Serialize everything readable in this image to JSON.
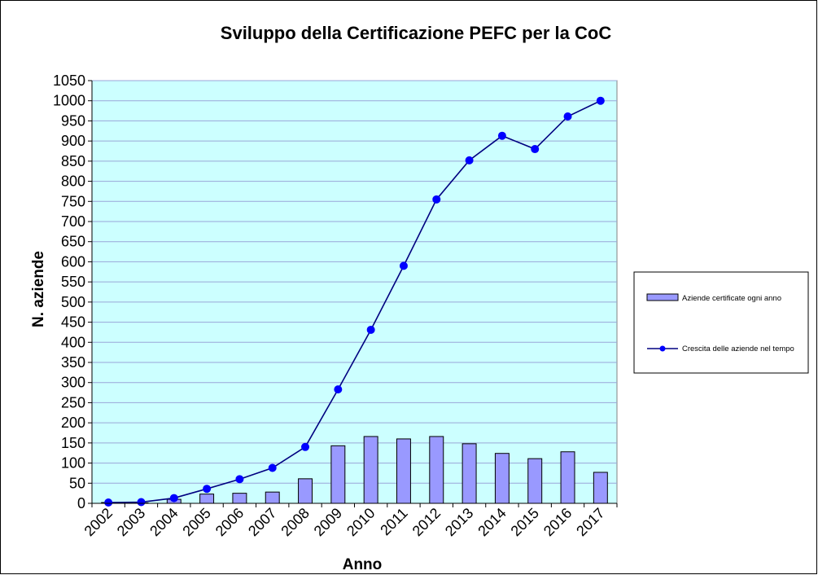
{
  "chart_data": {
    "type": "bar",
    "title": "Sviluppo della Certificazione PEFC per la CoC",
    "xlabel": "Anno",
    "ylabel": "N. aziende",
    "ylim": [
      0,
      1050
    ],
    "ytick_step": 50,
    "grid": true,
    "legend_position": "right",
    "categories": [
      "2002",
      "2003",
      "2004",
      "2005",
      "2006",
      "2007",
      "2008",
      "2009",
      "2010",
      "2011",
      "2012",
      "2013",
      "2014",
      "2015",
      "2016",
      "2017"
    ],
    "series": [
      {
        "name": "Aziende certificate ogni anno",
        "type": "bar",
        "color": "#9999ff",
        "values": [
          2,
          1,
          10,
          23,
          25,
          28,
          61,
          143,
          166,
          160,
          166,
          148,
          124,
          111,
          128,
          77
        ]
      },
      {
        "name": "Crescita delle aziende nel tempo",
        "type": "line",
        "color": "#0000ff",
        "line_color": "#000080",
        "values": [
          2,
          3,
          13,
          36,
          60,
          88,
          140,
          283,
          431,
          590,
          755,
          852,
          913,
          880,
          961,
          1000
        ]
      }
    ]
  },
  "colors": {
    "plot_background": "#ccffff",
    "grid": "#9aa6d8",
    "frame": "#808080"
  }
}
